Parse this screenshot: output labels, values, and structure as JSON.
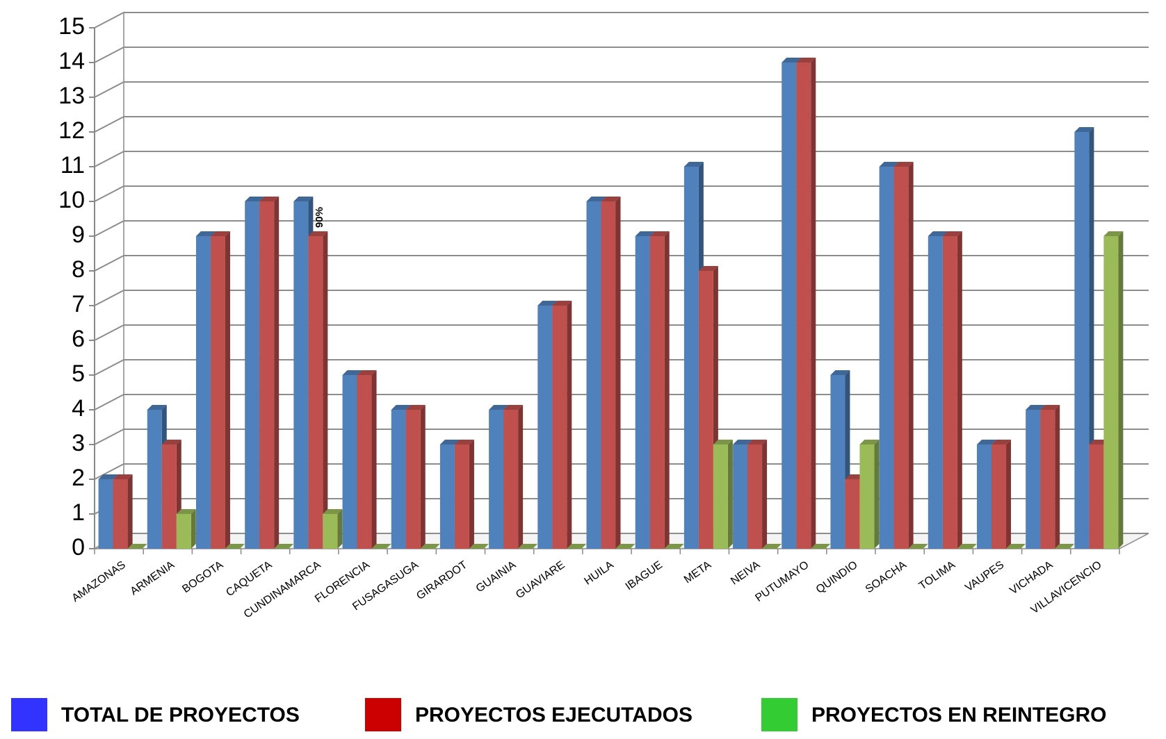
{
  "chart_data": {
    "type": "bar3d",
    "categories": [
      "AMAZONAS",
      "ARMENIA",
      "BOGOTA",
      "CAQUETA",
      "CUNDINAMARCA",
      "FLORENCIA",
      "FUSAGASUGA",
      "GIRARDOT",
      "GUAINIA",
      "GUAVIARE",
      "HUILA",
      "IBAGUE",
      "META",
      "NEIVA",
      "PUTUMAYO",
      "QUINDIO",
      "SOACHA",
      "TOLIMA",
      "VAUPES",
      "VICHADA",
      "VILLAVICENCIO"
    ],
    "series": [
      {
        "name": "TOTAL DE PROYECTOS",
        "color": "#4f81bd",
        "legend_color": "#3333ff",
        "values": [
          2,
          4,
          9,
          10,
          10,
          5,
          4,
          3,
          4,
          7,
          10,
          9,
          11,
          3,
          14,
          5,
          11,
          9,
          3,
          4,
          12
        ]
      },
      {
        "name": "PROYECTOS EJECUTADOS",
        "color": "#c0504d",
        "legend_color": "#cc0000",
        "values": [
          2,
          3,
          9,
          10,
          9,
          5,
          4,
          3,
          4,
          7,
          10,
          9,
          8,
          3,
          14,
          2,
          11,
          9,
          3,
          4,
          3
        ]
      },
      {
        "name": "PROYECTOS EN REINTEGRO",
        "color": "#9bbb59",
        "legend_color": "#33cc33",
        "values": [
          0,
          1,
          0,
          0,
          1,
          0,
          0,
          0,
          0,
          0,
          0,
          0,
          3,
          0,
          0,
          3,
          0,
          0,
          0,
          0,
          9
        ]
      }
    ],
    "annotations": [
      {
        "text": "90%",
        "category": "CUNDINAMARCA"
      }
    ],
    "ylim": [
      0,
      15
    ],
    "yticks": [
      0,
      1,
      2,
      3,
      4,
      5,
      6,
      7,
      8,
      9,
      10,
      11,
      12,
      13,
      14,
      15
    ],
    "grid": true
  }
}
